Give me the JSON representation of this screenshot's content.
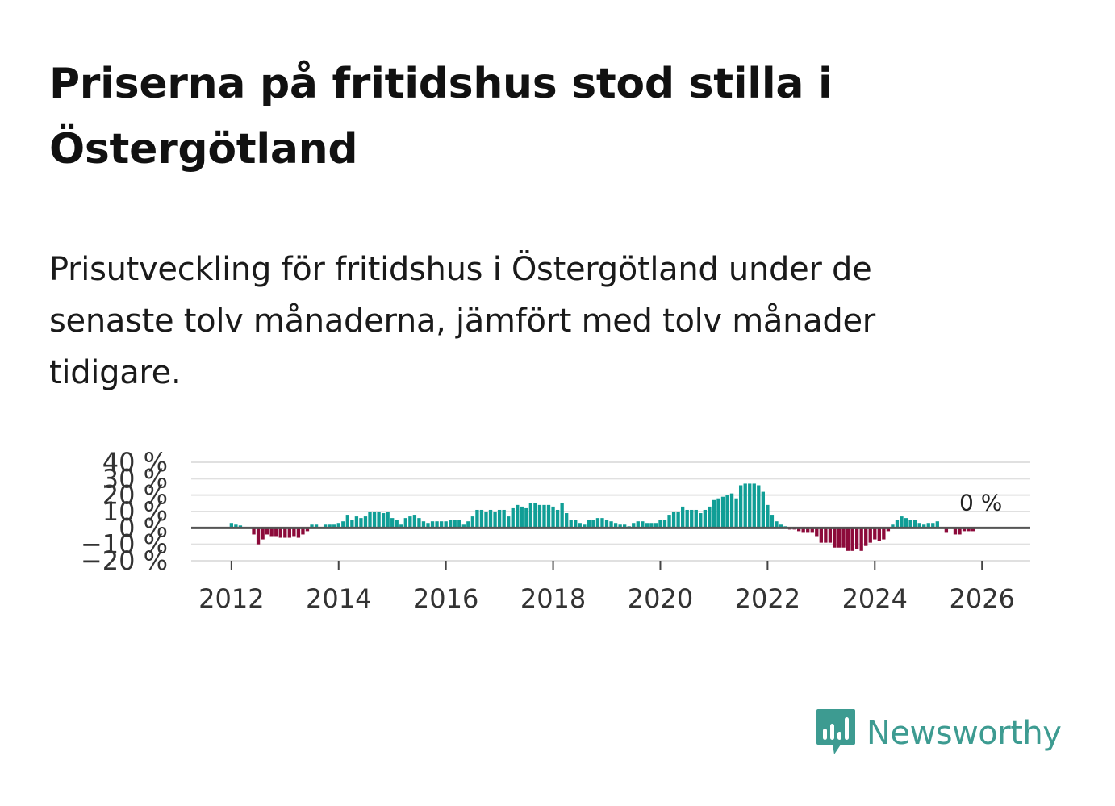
{
  "title": "Priserna på fritidshus stod stilla i Östergötland",
  "subtitle": "Prisutveckling för fritidshus i Östergötland under de senaste tolv månaderna, jämfört med tolv månader tidigare.",
  "brand": {
    "name": "Newsworthy",
    "icon": "newsworthy-logo-icon",
    "color": "#3d9b91"
  },
  "colors": {
    "positive": "#109e96",
    "negative": "#8c0a3a",
    "grid": "#e0e0e0",
    "zero": "#555555"
  },
  "chart_data": {
    "type": "bar",
    "title": "Priserna på fritidshus stod stilla i Östergötland",
    "xlabel": "",
    "ylabel": "",
    "ylim": [
      -20,
      40
    ],
    "xlim": [
      2011.25,
      2026.9
    ],
    "y_ticks": [
      -20,
      -10,
      0,
      10,
      20,
      30,
      40
    ],
    "y_tick_labels": [
      "−20 %",
      "−10 %",
      "0 %",
      "10 %",
      "20 %",
      "30 %",
      "40 %"
    ],
    "x_ticks": [
      2012,
      2014,
      2016,
      2018,
      2020,
      2022,
      2024,
      2026
    ],
    "x_tick_labels": [
      "2012",
      "2014",
      "2016",
      "2018",
      "2020",
      "2022",
      "2024",
      "2026"
    ],
    "end_label": "0 %",
    "series": [
      {
        "name": "Prisutveckling (%)",
        "start_year": 2012,
        "start_month": 1,
        "frequency": "monthly",
        "values": [
          3,
          2,
          1.5,
          0,
          0.5,
          -4,
          -10,
          -7,
          -4,
          -5,
          -5,
          -6,
          -6,
          -6,
          -5,
          -6,
          -4,
          -2,
          2,
          2,
          0,
          2,
          2,
          2,
          3,
          4,
          8,
          5,
          7,
          6,
          7,
          10,
          10,
          10,
          9,
          10,
          6,
          5,
          2,
          6,
          7,
          8,
          6,
          4,
          3,
          4,
          4,
          4,
          4,
          5,
          5,
          5,
          2,
          4,
          7,
          11,
          11,
          10,
          11,
          10,
          11,
          11,
          7,
          12,
          14,
          13,
          12,
          15,
          15,
          14,
          14,
          14,
          13,
          11,
          15,
          9,
          5,
          5,
          3,
          2,
          5,
          5,
          6,
          6,
          5,
          4,
          3,
          2,
          2,
          1,
          3,
          4,
          4,
          3,
          3,
          3,
          5,
          5,
          8,
          10,
          10,
          13,
          11,
          11,
          11,
          9,
          11,
          13,
          17,
          18,
          19,
          20,
          21,
          18,
          26,
          27,
          27,
          27,
          26,
          22,
          14,
          8,
          4,
          2,
          1,
          -1,
          -1,
          -2,
          -3,
          -3,
          -3,
          -5,
          -9,
          -9,
          -9,
          -12,
          -12,
          -12,
          -14,
          -14,
          -13,
          -14,
          -11,
          -9,
          -7,
          -8,
          -7,
          -2,
          2,
          5,
          7,
          6,
          5,
          5,
          3,
          2,
          3,
          3,
          4,
          0,
          -3,
          0,
          -4,
          -4,
          -2,
          -2,
          -2,
          0
        ]
      }
    ]
  }
}
